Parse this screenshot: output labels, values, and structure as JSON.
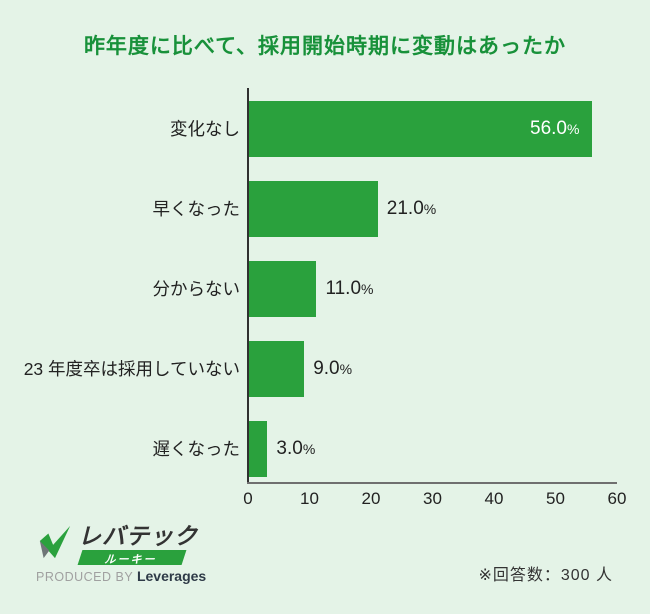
{
  "page": {
    "background_color": "#e4f3e7"
  },
  "title": {
    "text": "昨年度に比べて、採用開始時期に変動はあったか",
    "color": "#18913a"
  },
  "chart_data": {
    "type": "bar",
    "orientation": "horizontal",
    "title": "昨年度に比べて、採用開始時期に変動はあったか",
    "categories": [
      "変化なし",
      "早くなった",
      "分からない",
      "23 年度卒は採用していない",
      "遅くなった"
    ],
    "values": [
      56.0,
      21.0,
      11.0,
      9.0,
      3.0
    ],
    "value_labels": [
      "56.0",
      "21.0",
      "11.0",
      "9.0",
      "3.0"
    ],
    "unit": "%",
    "label_inside": [
      true,
      false,
      false,
      false,
      false
    ],
    "xlim": [
      0,
      60
    ],
    "x_ticks": [
      "0",
      "10",
      "20",
      "30",
      "40",
      "50",
      "60"
    ],
    "xlabel": "",
    "ylabel": "",
    "grid": false,
    "legend": "none",
    "bar_color": "#2aa13d"
  },
  "footer": {
    "note": "※回答数：300 人",
    "logo": {
      "brand": "レバテック",
      "sub_brand": "ルーキー",
      "produced_by": "PRODUCED BY",
      "company": "Leverages"
    }
  }
}
